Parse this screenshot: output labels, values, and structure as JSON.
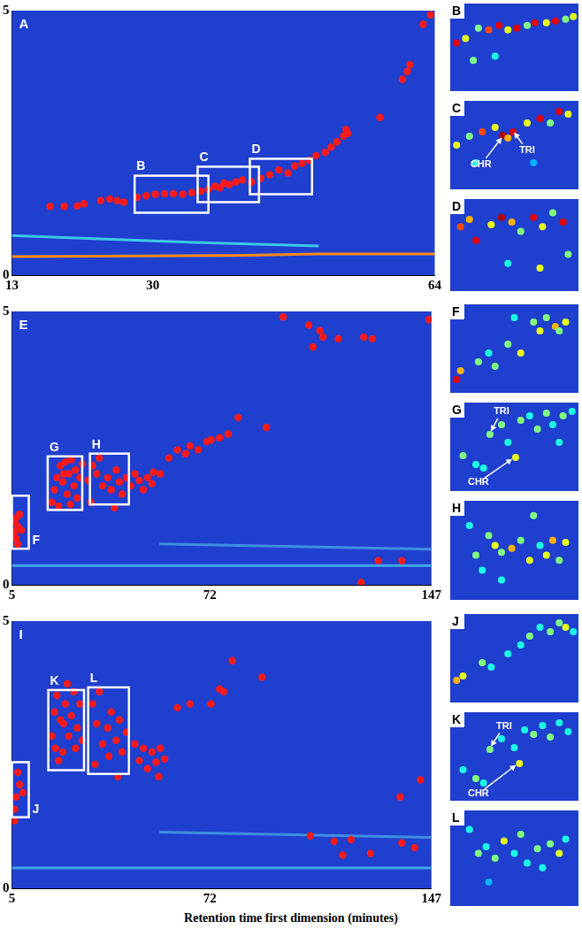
{
  "xlabel": "Retention time first dimension (minutes)",
  "chart_data": [
    {
      "type": "scatter",
      "label": "A",
      "xlim": [
        13,
        64
      ],
      "ylim": [
        0,
        5
      ],
      "xticks": [
        13,
        30,
        64
      ],
      "yticks": [
        0,
        5
      ],
      "grid": false,
      "color": "#ff1a1a",
      "marker": "circle",
      "x": [
        17.6,
        19.3,
        20.9,
        21.7,
        23.7,
        24.8,
        25.7,
        26.5,
        28.1,
        29.2,
        30.3,
        31.4,
        32.5,
        33.6,
        34.7,
        35.8,
        36.7,
        37.5,
        38.1,
        38.6,
        39.2,
        40.0,
        40.8,
        41.9,
        43.0,
        44.1,
        45.2,
        46.3,
        47.1,
        48.0,
        48.9,
        49.7,
        50.8,
        51.5,
        52.2,
        53.0,
        53.3,
        53.5,
        57.4,
        60.1,
        60.7,
        61.0,
        62.6,
        63.5
      ],
      "y": [
        1.3,
        1.3,
        1.31,
        1.35,
        1.41,
        1.44,
        1.41,
        1.38,
        1.47,
        1.5,
        1.53,
        1.54,
        1.54,
        1.53,
        1.56,
        1.59,
        1.62,
        1.68,
        1.65,
        1.74,
        1.71,
        1.76,
        1.8,
        1.76,
        1.83,
        1.9,
        1.99,
        1.93,
        2.06,
        2.11,
        2.17,
        2.26,
        2.32,
        2.42,
        2.52,
        2.63,
        2.75,
        2.68,
        2.98,
        3.7,
        3.85,
        3.98,
        4.74,
        4.92
      ],
      "streaks": [
        {
          "x": [
            13,
            40,
            50,
            55,
            64
          ],
          "y": [
            0.35,
            0.37,
            0.4,
            0.4,
            0.4
          ],
          "color": "#ff8c1a"
        },
        {
          "x": [
            13,
            35,
            50
          ],
          "y": [
            0.75,
            0.62,
            0.55
          ],
          "color": "#3fc8e8"
        }
      ],
      "regions": [
        {
          "label": "B",
          "x": [
            27.8,
            36.7
          ],
          "y": [
            1.18,
            1.88
          ]
        },
        {
          "label": "C",
          "x": [
            35.4,
            42.8
          ],
          "y": [
            1.38,
            2.05
          ]
        },
        {
          "label": "D",
          "x": [
            41.7,
            49.2
          ],
          "y": [
            1.53,
            2.2
          ]
        }
      ]
    },
    {
      "type": "scatter",
      "label": "B",
      "xlim": [
        0,
        100
      ],
      "ylim": [
        0,
        100
      ],
      "tick_labels": false,
      "grid": false,
      "x": [
        5,
        12,
        22,
        30,
        38,
        45,
        52,
        60,
        66,
        75,
        82,
        90,
        96,
        35,
        18
      ],
      "y": [
        55,
        60,
        72,
        70,
        75,
        70,
        72,
        75,
        78,
        78,
        80,
        82,
        85,
        40,
        35
      ],
      "intensity": [
        0.9,
        0.6,
        0.5,
        0.8,
        0.9,
        0.6,
        0.9,
        0.5,
        0.9,
        0.6,
        0.9,
        0.5,
        0.6,
        0.4,
        0.5
      ]
    },
    {
      "type": "scatter",
      "label": "C",
      "xlim": [
        0,
        100
      ],
      "ylim": [
        0,
        100
      ],
      "tick_labels": false,
      "grid": false,
      "x": [
        5,
        15,
        25,
        35,
        41,
        49,
        45,
        60,
        70,
        78,
        85,
        92,
        20,
        65
      ],
      "y": [
        50,
        60,
        65,
        70,
        61,
        65,
        58,
        75,
        80,
        75,
        88,
        85,
        30,
        30
      ],
      "intensity": [
        0.6,
        0.5,
        0.8,
        0.6,
        0.95,
        0.9,
        0.7,
        0.6,
        0.9,
        0.5,
        0.9,
        0.6,
        0.4,
        0.3
      ],
      "annotations": [
        {
          "text": "TRI",
          "x": 60,
          "y": 44,
          "target": [
            50,
            64
          ]
        },
        {
          "text": "CHR",
          "x": 24,
          "y": 28,
          "target": [
            40,
            58
          ]
        }
      ]
    },
    {
      "type": "scatter",
      "label": "D",
      "xlim": [
        0,
        100
      ],
      "ylim": [
        0,
        100
      ],
      "tick_labels": false,
      "grid": false,
      "x": [
        8,
        15,
        20,
        32,
        40,
        48,
        55,
        65,
        72,
        80,
        88,
        70,
        45,
        92
      ],
      "y": [
        70,
        78,
        55,
        72,
        80,
        75,
        65,
        80,
        70,
        85,
        75,
        25,
        30,
        40
      ],
      "intensity": [
        0.8,
        0.7,
        0.9,
        0.6,
        0.95,
        0.7,
        0.5,
        0.9,
        0.6,
        0.5,
        0.9,
        0.6,
        0.4,
        0.5
      ]
    },
    {
      "type": "scatter",
      "label": "E",
      "xlim": [
        5,
        147
      ],
      "ylim": [
        0,
        5
      ],
      "xticks": [
        5,
        72,
        147
      ],
      "yticks": [
        0,
        5
      ],
      "grid": false,
      "color": "#ff1a1a",
      "marker": "circle",
      "x": [
        5.9,
        6.4,
        7.0,
        5.9,
        7.6,
        6.4,
        8.2,
        7.0,
        18.5,
        19.4,
        20.2,
        21.4,
        22.2,
        23.1,
        23.7,
        24.2,
        25.1,
        26.0,
        26.5,
        27.1,
        28.0,
        20.8,
        28.8,
        22.5,
        24.8,
        30.8,
        32.3,
        33.7,
        34.6,
        35.7,
        37.4,
        38.6,
        40.3,
        41.4,
        42.3,
        43.7,
        45.2,
        46.6,
        48.1,
        49.5,
        50.9,
        52.4,
        52.9,
        39.7,
        31.7,
        55.2,
        58.1,
        61.0,
        63.8,
        65.3,
        68.1,
        71.0,
        72.4,
        75.3,
        78.2,
        81.6,
        91.1,
        96.8,
        105.5,
        106.9,
        109.2,
        110.3,
        115.5,
        124.1,
        127.0,
        146.2,
        129.0,
        137.0,
        123.2
      ],
      "y": [
        1.15,
        1.22,
        1.07,
        0.97,
        1.29,
        0.85,
        1.0,
        0.74,
        1.51,
        1.74,
        1.96,
        2.18,
        1.88,
        2.25,
        1.66,
        2.03,
        2.29,
        1.81,
        2.1,
        1.59,
        1.96,
        1.44,
        2.21,
        2.03,
        1.47,
        1.91,
        2.18,
        2.03,
        2.32,
        1.81,
        1.96,
        1.74,
        2.1,
        1.88,
        1.66,
        1.96,
        1.81,
        2.03,
        1.91,
        1.74,
        1.96,
        1.85,
        2.06,
        1.41,
        1.51,
        2.03,
        2.32,
        2.47,
        2.4,
        2.54,
        2.47,
        2.62,
        2.65,
        2.69,
        2.76,
        3.06,
        2.88,
        4.9,
        4.75,
        4.35,
        4.65,
        4.53,
        4.5,
        4.53,
        4.5,
        4.85,
        0.44,
        0.44,
        0.04
      ],
      "streaks": [
        {
          "x": [
            5,
            147
          ],
          "y": [
            0.35,
            0.35
          ],
          "color": "#3fa8e8"
        },
        {
          "x": [
            55,
            147
          ],
          "y": [
            0.75,
            0.65
          ],
          "color": "#3f8ee0"
        }
      ],
      "regions": [
        {
          "label": "F",
          "x": [
            5,
            10.7
          ],
          "y": [
            0.66,
            1.63
          ]
        },
        {
          "label": "G",
          "x": [
            17.1,
            28.8
          ],
          "y": [
            1.37,
            2.35
          ]
        },
        {
          "label": "H",
          "x": [
            31.4,
            44.6
          ],
          "y": [
            1.47,
            2.4
          ]
        }
      ]
    },
    {
      "type": "scatter",
      "label": "F",
      "xlim": [
        0,
        100
      ],
      "ylim": [
        0,
        100
      ],
      "tick_labels": false,
      "grid": false,
      "x": [
        5,
        8,
        22,
        30,
        35,
        45,
        55,
        65,
        70,
        75,
        82,
        90,
        85,
        50
      ],
      "y": [
        15,
        25,
        35,
        45,
        30,
        55,
        45,
        80,
        70,
        85,
        75,
        80,
        70,
        85
      ],
      "intensity": [
        0.9,
        0.7,
        0.5,
        0.4,
        0.5,
        0.5,
        0.6,
        0.5,
        0.6,
        0.5,
        0.7,
        0.6,
        0.5,
        0.4
      ]
    },
    {
      "type": "scatter",
      "label": "G",
      "xlim": [
        0,
        100
      ],
      "ylim": [
        0,
        100
      ],
      "tick_labels": false,
      "grid": false,
      "x": [
        10,
        20,
        26,
        31,
        40,
        45,
        51,
        55,
        62,
        68,
        75,
        80,
        88,
        95,
        85
      ],
      "y": [
        40,
        30,
        26,
        64,
        75,
        55,
        38,
        80,
        85,
        70,
        88,
        75,
        85,
        90,
        55
      ],
      "intensity": [
        0.5,
        0.4,
        0.4,
        0.5,
        0.5,
        0.4,
        0.6,
        0.5,
        0.4,
        0.5,
        0.5,
        0.4,
        0.5,
        0.4,
        0.4
      ],
      "annotations": [
        {
          "text": "TRI",
          "x": 40,
          "y": 90,
          "target": [
            32,
            68
          ]
        },
        {
          "text": "CHR",
          "x": 22,
          "y": 10,
          "target": [
            48,
            36
          ]
        }
      ]
    },
    {
      "type": "scatter",
      "label": "H",
      "xlim": [
        0,
        100
      ],
      "ylim": [
        0,
        100
      ],
      "tick_labels": false,
      "grid": false,
      "x": [
        20,
        25,
        30,
        35,
        40,
        48,
        55,
        62,
        65,
        70,
        75,
        80,
        85,
        90,
        40,
        15
      ],
      "y": [
        45,
        30,
        65,
        55,
        48,
        52,
        60,
        40,
        85,
        55,
        45,
        60,
        40,
        58,
        20,
        75
      ],
      "intensity": [
        0.5,
        0.4,
        0.5,
        0.6,
        0.5,
        0.7,
        0.5,
        0.6,
        0.5,
        0.4,
        0.6,
        0.7,
        0.5,
        0.6,
        0.4,
        0.4
      ]
    },
    {
      "type": "scatter",
      "label": "I",
      "xlim": [
        5,
        147
      ],
      "ylim": [
        0,
        5
      ],
      "xticks": [
        5,
        72,
        147
      ],
      "yticks": [
        0,
        5
      ],
      "grid": false,
      "color": "#ff1a1a",
      "marker": "circle",
      "x": [
        5.9,
        6.4,
        7.6,
        7.0,
        8.7,
        5.9,
        18.5,
        19.4,
        20.2,
        21.4,
        22.2,
        23.1,
        23.7,
        24.2,
        25.1,
        26.0,
        26.5,
        27.1,
        28.0,
        20.8,
        28.8,
        22.5,
        19.7,
        32.3,
        33.7,
        34.6,
        35.7,
        37.4,
        38.6,
        40.3,
        41.4,
        42.3,
        43.7,
        33.1,
        40.9,
        37.8,
        46.6,
        48.1,
        49.5,
        50.9,
        52.4,
        53.8,
        55.2,
        54.7,
        56.7,
        61.0,
        65.3,
        72.4,
        76.7,
        79.6,
        89.7,
        75.3,
        106.0,
        114.1,
        119.8,
        117.0,
        126.4,
        137.0,
        141.3,
        143.3,
        136.4
      ],
      "y": [
        1.48,
        1.71,
        1.94,
        2.17,
        1.79,
        1.26,
        2.85,
        3.3,
        3.61,
        3.15,
        2.55,
        3.45,
        3.83,
        2.85,
        3.23,
        3.68,
        2.62,
        3.0,
        3.45,
        2.39,
        2.77,
        3.08,
        2.62,
        3.45,
        3.08,
        3.68,
        2.7,
        3.0,
        3.3,
        2.77,
        3.15,
        2.55,
        2.92,
        2.32,
        2.09,
        2.47,
        2.7,
        2.39,
        2.62,
        2.24,
        2.55,
        2.36,
        2.62,
        2.09,
        2.42,
        3.38,
        3.45,
        3.45,
        3.68,
        4.26,
        3.95,
        3.73,
        0.98,
        0.88,
        0.91,
        0.62,
        0.65,
        0.85,
        0.76,
        2.03,
        1.71
      ],
      "streaks": [
        {
          "x": [
            5,
            147
          ],
          "y": [
            0.38,
            0.38
          ],
          "color": "#3fa8e8"
        },
        {
          "x": [
            55,
            147
          ],
          "y": [
            1.05,
            0.95
          ],
          "color": "#3f8ee0"
        }
      ],
      "regions": [
        {
          "label": "J",
          "x": [
            5,
            10.7
          ],
          "y": [
            1.33,
            2.36
          ]
        },
        {
          "label": "K",
          "x": [
            17.3,
            29.4
          ],
          "y": [
            2.21,
            3.71
          ]
        },
        {
          "label": "L",
          "x": [
            30.8,
            44.6
          ],
          "y": [
            2.14,
            3.76
          ]
        }
      ]
    },
    {
      "type": "scatter",
      "label": "J",
      "xlim": [
        0,
        100
      ],
      "ylim": [
        0,
        100
      ],
      "tick_labels": false,
      "grid": false,
      "x": [
        5,
        10,
        25,
        32,
        45,
        55,
        62,
        70,
        78,
        85,
        90,
        96
      ],
      "y": [
        25,
        30,
        45,
        40,
        55,
        65,
        75,
        85,
        80,
        90,
        85,
        80
      ],
      "intensity": [
        0.7,
        0.6,
        0.5,
        0.4,
        0.4,
        0.4,
        0.5,
        0.4,
        0.5,
        0.5,
        0.6,
        0.4
      ]
    },
    {
      "type": "scatter",
      "label": "K",
      "xlim": [
        0,
        100
      ],
      "ylim": [
        0,
        100
      ],
      "tick_labels": false,
      "grid": false,
      "x": [
        10,
        20,
        26,
        31,
        40,
        50,
        54,
        58,
        65,
        72,
        78,
        85,
        92
      ],
      "y": [
        35,
        25,
        20,
        58,
        70,
        60,
        42,
        80,
        75,
        85,
        72,
        88,
        78
      ],
      "intensity": [
        0.4,
        0.5,
        0.4,
        0.5,
        0.4,
        0.4,
        0.6,
        0.4,
        0.5,
        0.4,
        0.5,
        0.4,
        0.4
      ],
      "annotations": [
        {
          "text": "TRI",
          "x": 42,
          "y": 84,
          "target": [
            32,
            62
          ]
        },
        {
          "text": "CHR",
          "x": 22,
          "y": 8,
          "target": [
            51,
            40
          ]
        }
      ]
    },
    {
      "type": "scatter",
      "label": "L",
      "xlim": [
        0,
        100
      ],
      "ylim": [
        0,
        100
      ],
      "tick_labels": false,
      "grid": false,
      "x": [
        15,
        22,
        28,
        35,
        42,
        50,
        55,
        60,
        68,
        72,
        78,
        85,
        90,
        30
      ],
      "y": [
        80,
        55,
        62,
        50,
        68,
        55,
        75,
        45,
        60,
        40,
        65,
        55,
        70,
        25
      ],
      "intensity": [
        0.4,
        0.5,
        0.4,
        0.5,
        0.6,
        0.4,
        0.5,
        0.4,
        0.5,
        0.4,
        0.5,
        0.6,
        0.4,
        0.3
      ]
    }
  ]
}
